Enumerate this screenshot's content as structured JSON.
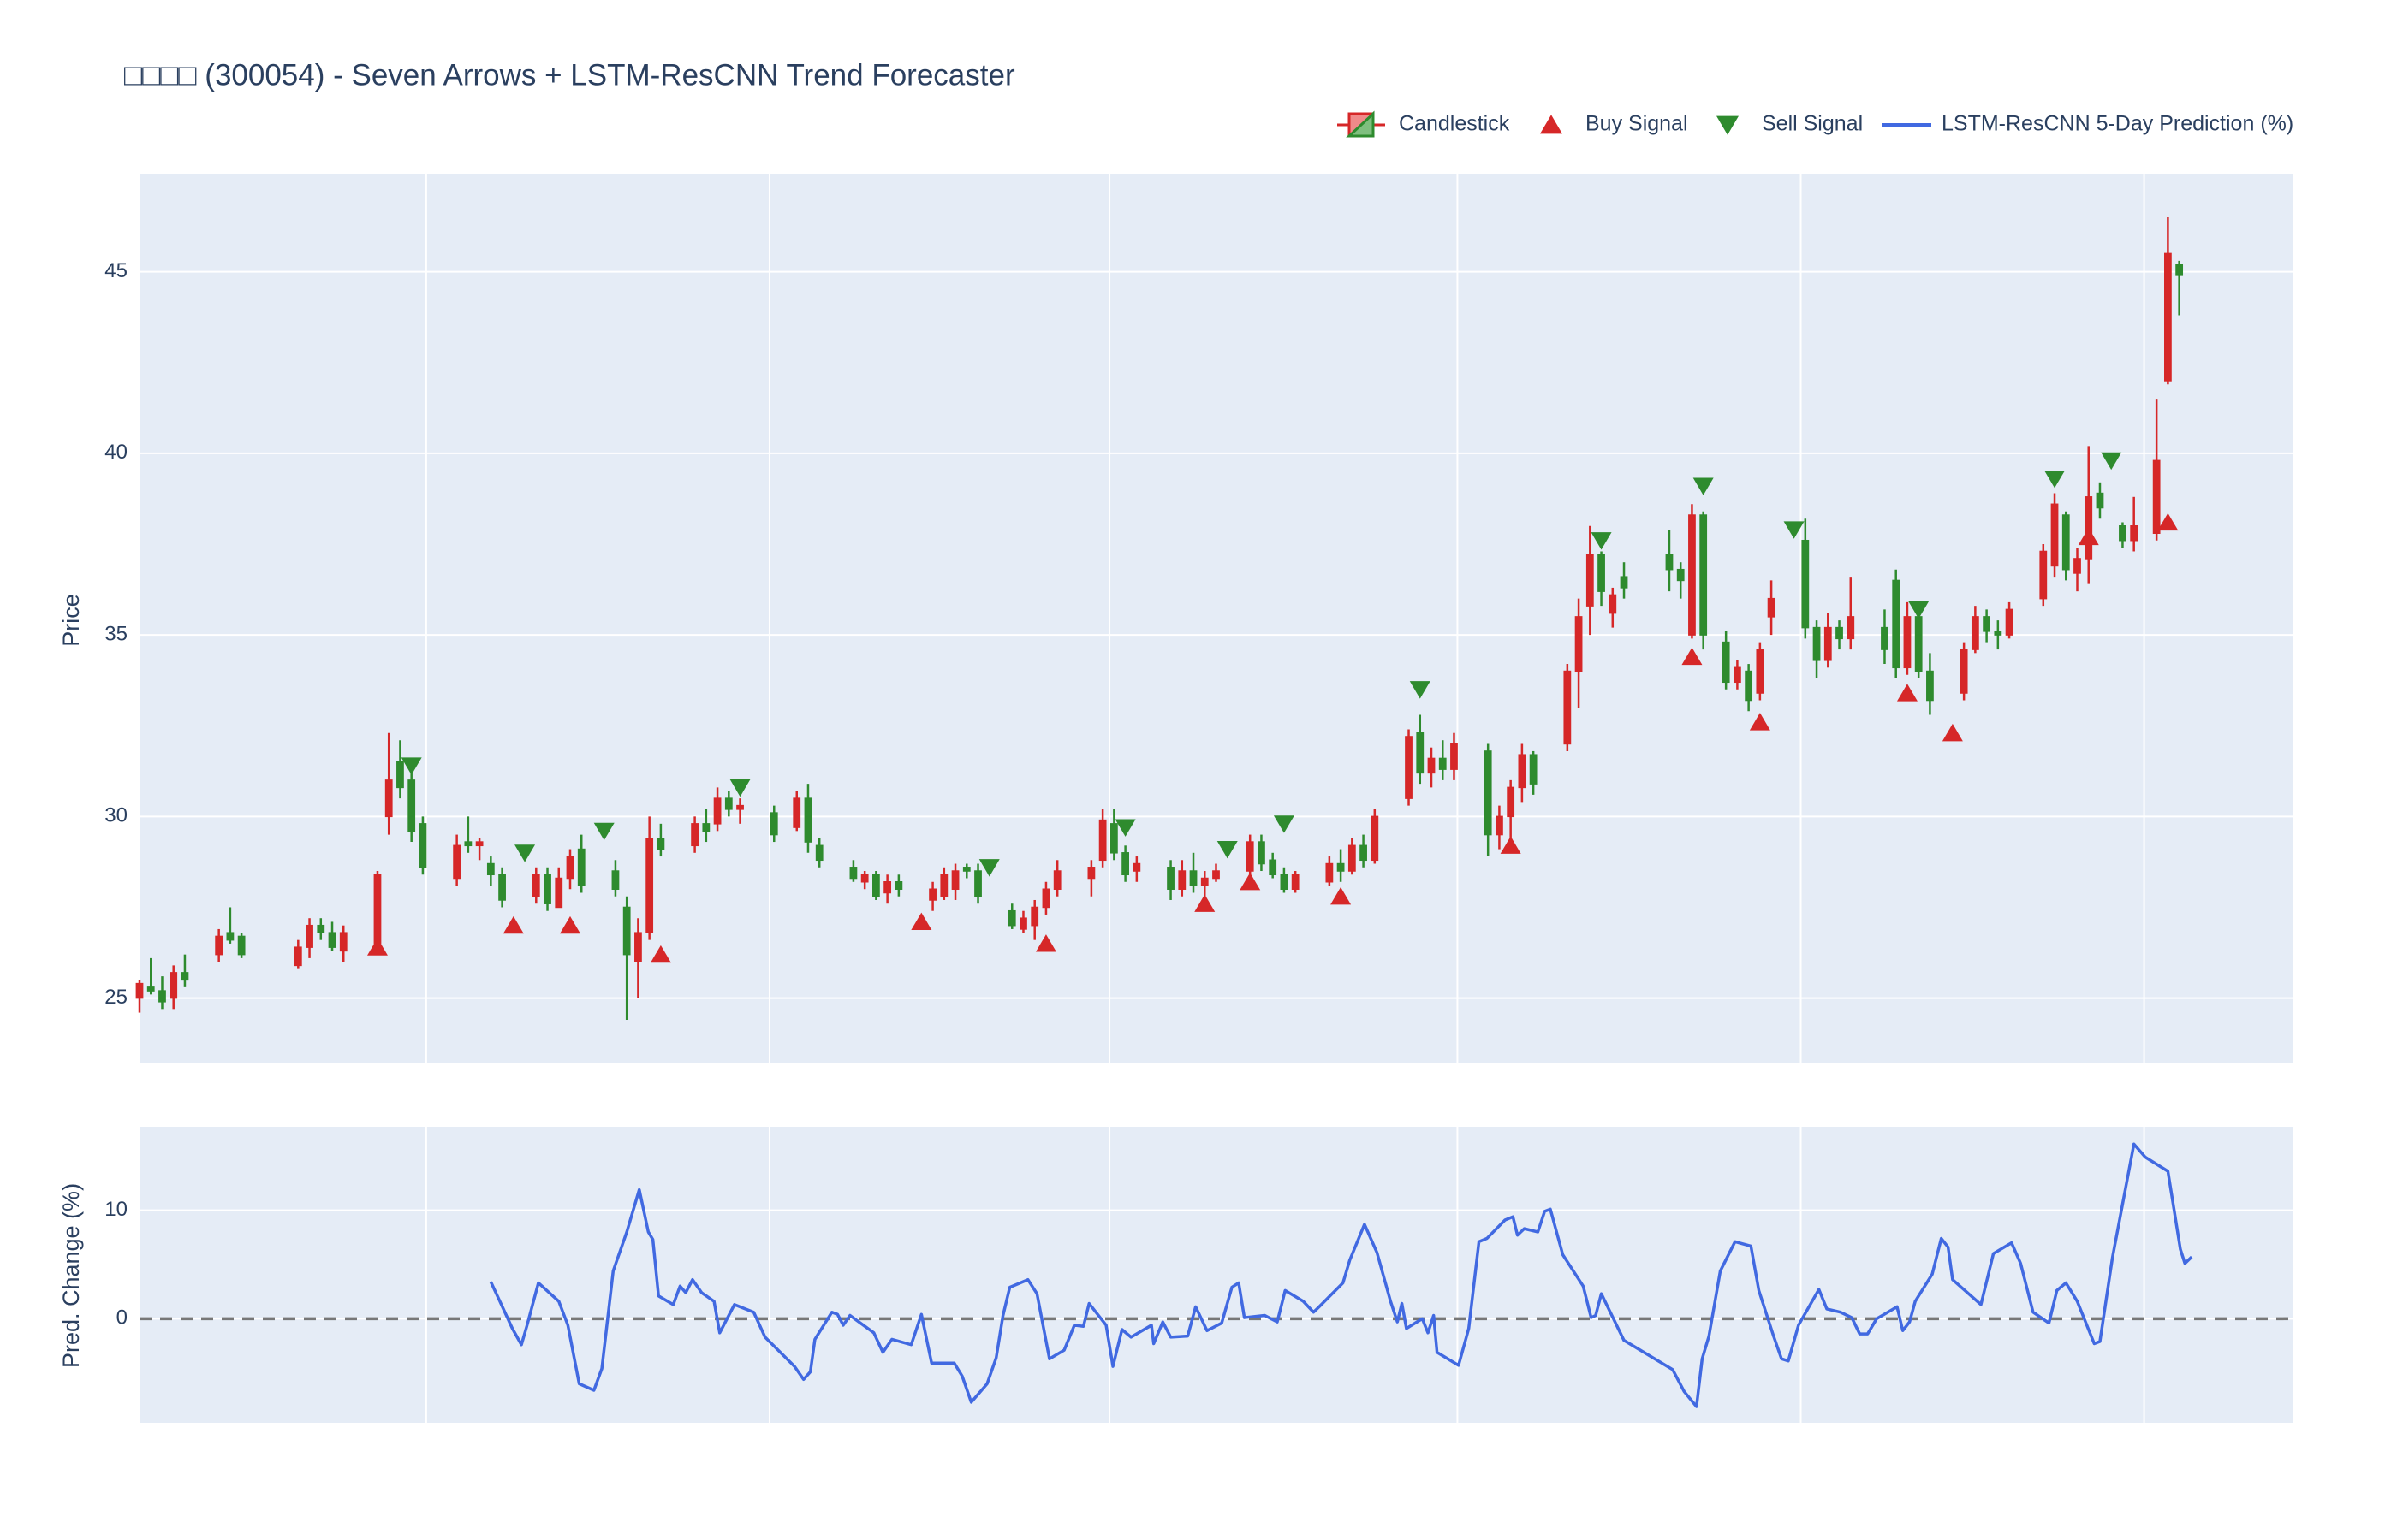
{
  "chart_data": [
    {
      "type": "candlestick",
      "title": "□□□□ (300054) - Seven Arrows + LSTM-ResCNN Trend Forecaster",
      "name": "Candlestick",
      "ylabel": "Price",
      "legend": "top-right",
      "increasing_color": "#d62728",
      "decreasing_color": "#2e8b2e",
      "xlim": [
        0,
        190
      ],
      "xgrid": [
        25.3,
        55.6,
        85.6,
        116.3,
        146.6,
        176.9
      ],
      "ylim": [
        23.2,
        47.7
      ],
      "yticks": [
        25,
        30,
        35,
        40,
        45
      ],
      "grid": true,
      "x": [
        0,
        1,
        2,
        3,
        4,
        7,
        8,
        9,
        14,
        15,
        16,
        17,
        18,
        21,
        22,
        23,
        24,
        25,
        28,
        29,
        30,
        31,
        32,
        35,
        36,
        37,
        38,
        39,
        42,
        43,
        44,
        45,
        46,
        49,
        50,
        51,
        52,
        53,
        56,
        58,
        59,
        60,
        63,
        64,
        65,
        66,
        67,
        70,
        71,
        72,
        73,
        74,
        77,
        78,
        79,
        80,
        81,
        84,
        85,
        86,
        87,
        88,
        91,
        92,
        93,
        94,
        95,
        98,
        99,
        100,
        101,
        102,
        105,
        106,
        107,
        108,
        109,
        112,
        113,
        114,
        115,
        116,
        119,
        120,
        121,
        122,
        123,
        126,
        127,
        128,
        129,
        130,
        131,
        135,
        136,
        137,
        138,
        140,
        141,
        142,
        143,
        144,
        147,
        148,
        149,
        150,
        151,
        154,
        155,
        156,
        157,
        158,
        161,
        162,
        163,
        164,
        165,
        168,
        169,
        170,
        171,
        172,
        173,
        175,
        176,
        178,
        179,
        180
      ],
      "open": [
        25.0,
        25.3,
        25.2,
        25.0,
        25.7,
        26.2,
        26.8,
        26.7,
        25.9,
        26.4,
        27.0,
        26.8,
        26.3,
        26.5,
        30.0,
        31.5,
        31.0,
        29.8,
        28.3,
        29.3,
        29.2,
        28.7,
        28.4,
        27.8,
        28.4,
        27.5,
        28.3,
        29.1,
        28.5,
        27.5,
        26.0,
        26.8,
        29.4,
        29.2,
        29.8,
        29.8,
        30.5,
        30.2,
        30.1,
        29.7,
        30.5,
        29.2,
        28.6,
        28.2,
        28.4,
        27.9,
        28.2,
        27.7,
        27.8,
        28.0,
        28.6,
        28.5,
        27.4,
        26.9,
        27.0,
        27.5,
        28.0,
        28.3,
        28.8,
        29.8,
        29.0,
        28.5,
        28.6,
        28.0,
        28.5,
        28.1,
        28.3,
        28.5,
        29.3,
        28.8,
        28.4,
        28.0,
        28.2,
        28.7,
        28.5,
        29.2,
        28.8,
        30.5,
        32.3,
        31.2,
        31.6,
        31.3,
        31.8,
        29.5,
        30.0,
        30.8,
        31.7,
        32.0,
        34.0,
        35.8,
        37.2,
        35.6,
        36.6,
        37.2,
        36.8,
        35.0,
        38.3,
        34.8,
        33.7,
        34.0,
        33.4,
        35.5,
        37.6,
        35.2,
        34.3,
        35.2,
        34.9,
        35.2,
        36.5,
        34.1,
        35.5,
        34.0,
        33.4,
        34.6,
        35.5,
        35.1,
        35.0,
        36.0,
        36.9,
        38.3,
        36.7,
        37.1,
        38.9,
        38.0,
        37.6,
        37.8,
        42.0,
        45.2
      ],
      "high": [
        25.5,
        26.1,
        25.6,
        25.9,
        26.2,
        26.9,
        27.5,
        26.8,
        26.6,
        27.2,
        27.2,
        27.1,
        27.0,
        28.5,
        32.3,
        32.1,
        31.2,
        30.0,
        29.5,
        30.0,
        29.4,
        28.9,
        28.6,
        28.6,
        28.6,
        28.6,
        29.1,
        29.5,
        28.8,
        27.8,
        27.2,
        30.0,
        29.8,
        30.0,
        30.2,
        30.8,
        30.7,
        30.5,
        30.3,
        30.7,
        30.9,
        29.4,
        28.8,
        28.5,
        28.5,
        28.4,
        28.4,
        28.2,
        28.6,
        28.7,
        28.7,
        28.7,
        27.6,
        27.4,
        27.7,
        28.2,
        28.8,
        28.8,
        30.2,
        30.2,
        29.2,
        28.9,
        28.8,
        28.8,
        29.0,
        28.5,
        28.7,
        29.5,
        29.5,
        29.0,
        28.6,
        28.5,
        28.9,
        29.1,
        29.4,
        29.5,
        30.2,
        32.4,
        32.8,
        31.9,
        32.1,
        32.3,
        32.0,
        30.3,
        31.0,
        32.0,
        31.8,
        34.2,
        36.0,
        38.0,
        37.3,
        36.3,
        37.0,
        37.9,
        37.0,
        38.6,
        38.4,
        35.1,
        34.3,
        34.2,
        34.8,
        36.5,
        38.2,
        35.4,
        35.6,
        35.4,
        36.6,
        35.7,
        36.8,
        35.9,
        35.6,
        34.5,
        34.8,
        35.8,
        35.7,
        35.4,
        35.9,
        37.5,
        38.9,
        38.4,
        37.4,
        40.2,
        39.2,
        38.1,
        38.8,
        41.5,
        46.5,
        45.3
      ],
      "low": [
        24.6,
        25.1,
        24.7,
        24.7,
        25.3,
        26.0,
        26.5,
        26.1,
        25.8,
        26.1,
        26.6,
        26.3,
        26.0,
        26.3,
        29.5,
        30.5,
        29.3,
        28.4,
        28.1,
        29.0,
        28.8,
        28.1,
        27.5,
        27.6,
        27.4,
        27.5,
        28.0,
        27.9,
        27.8,
        24.4,
        25.0,
        26.6,
        28.9,
        29.0,
        29.3,
        29.6,
        30.0,
        29.8,
        29.3,
        29.6,
        29.0,
        28.6,
        28.2,
        28.0,
        27.7,
        27.6,
        27.8,
        27.4,
        27.7,
        27.7,
        28.3,
        27.6,
        26.9,
        26.8,
        26.6,
        27.3,
        27.8,
        27.8,
        28.6,
        28.8,
        28.2,
        28.2,
        27.7,
        27.8,
        27.9,
        27.6,
        28.2,
        28.4,
        28.5,
        28.3,
        27.9,
        27.9,
        28.1,
        28.2,
        28.4,
        28.6,
        28.7,
        30.3,
        30.9,
        30.8,
        31.0,
        31.0,
        28.9,
        29.1,
        29.2,
        30.4,
        30.6,
        31.8,
        33.0,
        35.0,
        35.8,
        35.2,
        36.0,
        36.2,
        36.0,
        34.9,
        34.6,
        33.5,
        33.5,
        32.9,
        33.2,
        35.0,
        34.9,
        33.8,
        34.1,
        34.6,
        34.6,
        34.2,
        33.8,
        33.9,
        33.8,
        32.8,
        33.2,
        34.5,
        34.8,
        34.6,
        34.9,
        35.8,
        36.6,
        36.5,
        36.2,
        36.4,
        38.2,
        37.4,
        37.3,
        37.6,
        41.9,
        43.8
      ],
      "close": [
        25.4,
        25.2,
        24.9,
        25.7,
        25.5,
        26.7,
        26.6,
        26.2,
        26.4,
        27.0,
        26.8,
        26.4,
        26.8,
        28.4,
        31.0,
        30.8,
        29.6,
        28.6,
        29.2,
        29.2,
        29.3,
        28.4,
        27.7,
        28.4,
        27.6,
        28.3,
        28.9,
        28.1,
        28.0,
        26.2,
        26.8,
        29.4,
        29.1,
        29.8,
        29.6,
        30.5,
        30.2,
        30.3,
        29.5,
        30.5,
        29.3,
        28.8,
        28.3,
        28.4,
        27.8,
        28.2,
        28.0,
        28.0,
        28.4,
        28.5,
        28.5,
        27.8,
        27.0,
        27.2,
        27.5,
        28.0,
        28.5,
        28.6,
        29.9,
        29.0,
        28.4,
        28.7,
        28.0,
        28.5,
        28.1,
        28.3,
        28.5,
        29.3,
        28.7,
        28.4,
        28.0,
        28.4,
        28.7,
        28.5,
        29.2,
        28.8,
        30.0,
        32.2,
        31.2,
        31.6,
        31.3,
        32.0,
        29.5,
        30.0,
        30.8,
        31.7,
        30.9,
        34.0,
        35.5,
        37.2,
        36.2,
        36.1,
        36.3,
        36.8,
        36.5,
        38.3,
        35.0,
        33.7,
        34.1,
        33.2,
        34.6,
        36.0,
        35.2,
        34.3,
        35.2,
        34.9,
        35.5,
        34.6,
        34.1,
        35.5,
        34.0,
        33.2,
        34.6,
        35.5,
        35.1,
        35.0,
        35.7,
        37.3,
        38.6,
        36.8,
        37.1,
        38.8,
        38.5,
        37.6,
        38.0,
        39.8,
        45.5,
        44.9
      ],
      "signals": [
        {
          "name": "Buy Signal",
          "color": "#d62728",
          "symbol": "triangle-up",
          "x": [
            21,
            33,
            38,
            46,
            69,
            80,
            94,
            98,
            106,
            121,
            137,
            143,
            156,
            160,
            172,
            179
          ],
          "values": [
            26.4,
            27.0,
            27.0,
            26.2,
            27.1,
            26.5,
            27.6,
            28.2,
            27.8,
            29.2,
            34.4,
            32.6,
            33.4,
            32.3,
            37.7,
            38.1
          ]
        },
        {
          "name": "Sell Signal",
          "color": "#2e8b2e",
          "symbol": "triangle-down",
          "x": [
            24,
            34,
            41,
            53,
            75,
            87,
            96,
            101,
            113,
            129,
            138,
            146,
            157,
            169,
            174
          ],
          "values": [
            31.4,
            29.0,
            29.6,
            30.8,
            28.6,
            29.7,
            29.1,
            29.8,
            33.5,
            37.6,
            39.1,
            37.9,
            35.7,
            39.3,
            39.8
          ]
        }
      ]
    },
    {
      "type": "line",
      "ylabel": "Pred. Change (%)",
      "xlim": [
        0,
        190
      ],
      "xgrid": [
        25.3,
        55.6,
        85.6,
        116.3,
        146.6,
        176.9
      ],
      "ylim": [
        -9.6,
        17.7
      ],
      "yticks": [
        0,
        10
      ],
      "grid": true,
      "hline": 0,
      "hline_color": "#777777",
      "series": [
        {
          "name": "LSTM-ResCNN 5-Day Prediction (%)",
          "color": "#4169e1",
          "x": [
            31.0,
            31.8,
            32.9,
            33.7,
            34.2,
            35.2,
            37.0,
            37.8,
            38.8,
            40.1,
            40.8,
            41.8,
            43.0,
            44.1,
            44.9,
            45.3,
            45.8,
            47.1,
            47.7,
            48.2,
            48.8,
            49.6,
            50.7,
            51.2,
            52.5,
            54.2,
            55.2,
            57.8,
            58.6,
            59.2,
            59.6,
            61.1,
            61.6,
            62.1,
            62.7,
            64.8,
            65.6,
            66.4,
            68.1,
            69.0,
            69.9,
            71.9,
            72.6,
            73.4,
            74.8,
            75.6,
            76.2,
            76.8,
            78.4,
            79.2,
            80.3,
            81.6,
            82.5,
            83.3,
            83.8,
            85.3,
            85.9,
            86.7,
            87.5,
            89.3,
            89.5,
            90.3,
            91.0,
            92.5,
            93.2,
            94.2,
            95.5,
            96.4,
            97.0,
            97.5,
            99.3,
            100.4,
            101.1,
            102.7,
            103.6,
            104.1,
            106.2,
            106.8,
            108.1,
            109.2,
            110.4,
            111.0,
            111.4,
            111.8,
            113.2,
            113.7,
            114.2,
            114.5,
            116.4,
            117.3,
            118.2,
            118.9,
            120.5,
            121.2,
            121.6,
            122.2,
            123.4,
            124.0,
            124.5,
            125.6,
            127.4,
            128.1,
            128.5,
            129.0,
            131.0,
            135.3,
            136.3,
            137.4,
            137.9,
            138.5,
            139.5,
            140.8,
            142.2,
            142.9,
            144.2,
            144.9,
            145.5,
            146.4,
            148.2,
            148.9,
            150.1,
            151.1,
            151.8,
            152.5,
            153.3,
            155.1,
            155.6,
            156.2,
            156.7,
            158.2,
            159.0,
            159.6,
            160.0,
            162.5,
            163.6,
            165.2,
            166.0,
            167.1,
            168.5,
            169.2,
            170.0,
            171.0,
            172.5,
            173.0,
            174.1,
            176.0,
            177.0,
            179.0,
            180.1,
            180.5,
            181.1
          ],
          "values": [
            3.4,
            1.6,
            -0.9,
            -2.4,
            -0.6,
            3.3,
            1.6,
            -0.6,
            -6.0,
            -6.6,
            -4.6,
            4.4,
            8.0,
            11.9,
            8.0,
            7.3,
            2.1,
            1.3,
            3.0,
            2.4,
            3.6,
            2.4,
            1.6,
            -1.3,
            1.3,
            0.6,
            -1.7,
            -4.4,
            -5.6,
            -4.9,
            -1.9,
            0.6,
            0.4,
            -0.6,
            0.3,
            -1.3,
            -3.1,
            -1.9,
            -2.4,
            0.4,
            -4.1,
            -4.1,
            -5.3,
            -7.7,
            -6.0,
            -3.6,
            0.3,
            2.9,
            3.6,
            2.3,
            -3.7,
            -2.9,
            -0.6,
            -0.7,
            1.4,
            -0.6,
            -4.4,
            -1.0,
            -1.7,
            -0.6,
            -2.3,
            -0.3,
            -1.7,
            -1.6,
            1.1,
            -1.1,
            -0.4,
            2.9,
            3.3,
            0.1,
            0.3,
            -0.3,
            2.6,
            1.6,
            0.6,
            1.1,
            3.3,
            5.4,
            8.7,
            6.1,
            1.6,
            -0.3,
            1.4,
            -0.9,
            0,
            -1.3,
            0.3,
            -3.1,
            -4.3,
            -0.9,
            7.1,
            7.4,
            9.1,
            9.4,
            7.7,
            8.3,
            8.0,
            9.9,
            10.1,
            5.9,
            3.0,
            0.1,
            0.3,
            2.3,
            -2.0,
            -4.7,
            -6.7,
            -8.1,
            -3.7,
            -1.6,
            4.4,
            7.1,
            6.7,
            2.6,
            -1.6,
            -3.7,
            -3.9,
            -0.6,
            2.7,
            0.9,
            0.6,
            0.1,
            -1.4,
            -1.4,
            0,
            1.1,
            -1.1,
            -0.3,
            1.6,
            4.1,
            7.4,
            6.6,
            3.6,
            1.3,
            6.0,
            7.0,
            5.1,
            0.6,
            -0.4,
            2.6,
            3.3,
            1.6,
            -2.3,
            -2.1,
            5.6,
            16.1,
            14.9,
            13.6,
            6.4,
            5.1,
            5.7
          ]
        }
      ]
    }
  ]
}
